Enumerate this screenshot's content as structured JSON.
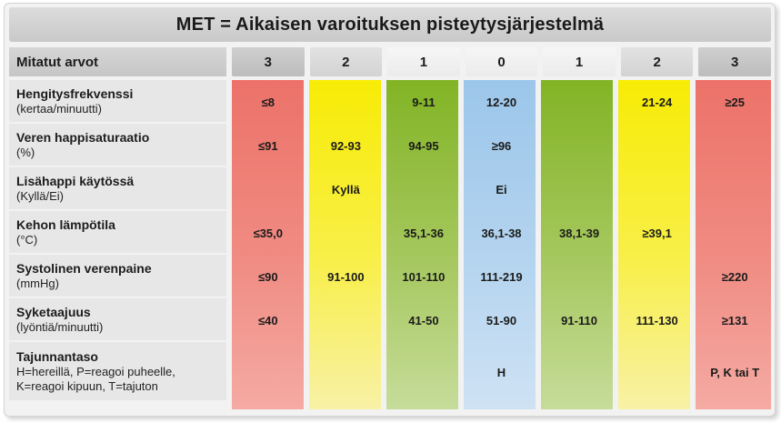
{
  "title": "MET = Aikaisen varoituksen pisteytysjärjestelmä",
  "header": {
    "label": "Mitatut arvot",
    "scores": [
      "3",
      "2",
      "1",
      "0",
      "1",
      "2",
      "3"
    ]
  },
  "colors": {
    "red": "#ef7a72",
    "yellow": "#f8ee10",
    "green": "#86b72c",
    "blue": "#9fc7ea"
  },
  "rows": [
    {
      "name": "Hengitysfrekvenssi",
      "unit": "(kertaa/minuutti)",
      "values": [
        "≤8",
        "",
        "9-11",
        "12-20",
        "",
        "21-24",
        "≥25"
      ]
    },
    {
      "name": "Veren happisaturaatio",
      "unit": "(%)",
      "values": [
        "≤91",
        "92-93",
        "94-95",
        "≥96",
        "",
        "",
        ""
      ]
    },
    {
      "name": "Lisähappi käytössä",
      "unit": "(Kyllä/Ei)",
      "values": [
        "",
        "Kyllä",
        "",
        "Ei",
        "",
        "",
        ""
      ]
    },
    {
      "name": "Kehon lämpötila",
      "unit": "(°C)",
      "values": [
        "≤35,0",
        "",
        "35,1-36",
        "36,1-38",
        "38,1-39",
        "≥39,1",
        ""
      ]
    },
    {
      "name": "Systolinen verenpaine",
      "unit": "(mmHg)",
      "values": [
        "≤90",
        "91-100",
        "101-110",
        "111-219",
        "",
        "",
        "≥220"
      ]
    },
    {
      "name": "Syketaajuus",
      "unit": "(lyöntiä/minuutti)",
      "values": [
        "≤40",
        "",
        "41-50",
        "51-90",
        "91-110",
        "111-130",
        "≥131"
      ]
    },
    {
      "name": "Tajunnantaso",
      "unit": "H=hereillä, P=reagoi puheelle,",
      "unit2": "K=reagoi kipuun, T=tajuton",
      "values": [
        "",
        "",
        "",
        "H",
        "",
        "",
        "P, K tai T"
      ]
    }
  ]
}
